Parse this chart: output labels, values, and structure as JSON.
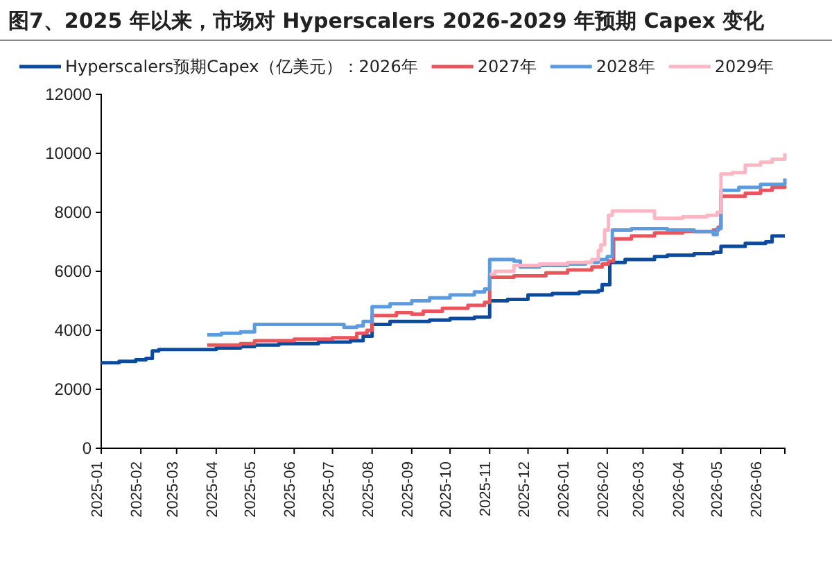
{
  "chart_data": {
    "type": "step",
    "title": "图7、2025 年以来，市场对 Hyperscalers 2026-2029 年预期 Capex 变化",
    "xlim": [
      "2025-01-01",
      "2026-06-20"
    ],
    "xticks": [
      "2025-01",
      "2025-02",
      "2025-03",
      "2025-04",
      "2025-05",
      "2025-06",
      "2025-07",
      "2025-08",
      "2025-09",
      "2025-10",
      "2025-11",
      "2025-12",
      "2026-01",
      "2026-02",
      "2026-03",
      "2026-04",
      "2026-05",
      "2026-06"
    ],
    "ylim": [
      0,
      12000
    ],
    "yticks": [
      0,
      2000,
      4000,
      6000,
      8000,
      10000,
      12000
    ],
    "grid": false,
    "legend": "top",
    "series": [
      {
        "name": "Hyperscalers预期Capex（亿美元）：2026年",
        "color": "#0b4a9c",
        "x": [
          "2025-01-01",
          "2025-01-15",
          "2025-01-28",
          "2025-02-05",
          "2025-02-10",
          "2025-02-15",
          "2025-04-01",
          "2025-04-20",
          "2025-05-01",
          "2025-05-20",
          "2025-06-20",
          "2025-07-15",
          "2025-07-25",
          "2025-08-01",
          "2025-08-15",
          "2025-09-15",
          "2025-10-01",
          "2025-10-20",
          "2025-11-01",
          "2025-11-15",
          "2025-12-01",
          "2025-12-20",
          "2026-01-10",
          "2026-01-25",
          "2026-01-28",
          "2026-02-03",
          "2026-02-15",
          "2026-03-10",
          "2026-03-20",
          "2026-04-10",
          "2026-04-25",
          "2026-05-01",
          "2026-05-20",
          "2026-06-05",
          "2026-06-10",
          "2026-06-20"
        ],
        "values": [
          2900,
          2950,
          3000,
          3050,
          3300,
          3350,
          3400,
          3450,
          3500,
          3550,
          3600,
          3650,
          3800,
          4200,
          4300,
          4350,
          4400,
          4450,
          5000,
          5050,
          5200,
          5250,
          5300,
          5350,
          5550,
          6300,
          6400,
          6500,
          6550,
          6600,
          6650,
          6850,
          6950,
          7000,
          7200,
          7200
        ]
      },
      {
        "name": "2027年",
        "color": "#e8555a",
        "x": [
          "2025-03-25",
          "2025-04-20",
          "2025-05-01",
          "2025-06-01",
          "2025-07-01",
          "2025-07-20",
          "2025-07-28",
          "2025-08-01",
          "2025-08-20",
          "2025-09-01",
          "2025-09-10",
          "2025-09-25",
          "2025-10-15",
          "2025-10-28",
          "2025-11-01",
          "2025-11-20",
          "2025-12-15",
          "2026-01-01",
          "2026-01-20",
          "2026-01-28",
          "2026-02-02",
          "2026-02-06",
          "2026-02-20",
          "2026-03-10",
          "2026-04-01",
          "2026-04-25",
          "2026-04-29",
          "2026-05-01",
          "2026-05-20",
          "2026-06-01",
          "2026-06-10",
          "2026-06-20"
        ],
        "values": [
          3500,
          3550,
          3650,
          3700,
          3750,
          3900,
          4000,
          4500,
          4600,
          4550,
          4650,
          4750,
          4850,
          4950,
          5800,
          5850,
          5950,
          6050,
          6150,
          6250,
          6350,
          7100,
          7200,
          7300,
          7350,
          7400,
          7500,
          8550,
          8650,
          8750,
          8850,
          8900
        ]
      },
      {
        "name": "2028年",
        "color": "#5b9be0",
        "x": [
          "2025-03-25",
          "2025-04-05",
          "2025-04-20",
          "2025-05-01",
          "2025-07-01",
          "2025-07-10",
          "2025-07-20",
          "2025-07-25",
          "2025-08-01",
          "2025-08-15",
          "2025-09-01",
          "2025-09-15",
          "2025-10-01",
          "2025-10-20",
          "2025-10-28",
          "2025-11-01",
          "2025-11-20",
          "2025-11-25",
          "2025-12-10",
          "2026-01-01",
          "2026-01-15",
          "2026-01-25",
          "2026-02-01",
          "2026-02-05",
          "2026-02-20",
          "2026-03-20",
          "2026-04-10",
          "2026-04-25",
          "2026-04-28",
          "2026-05-01",
          "2026-05-15",
          "2026-06-01",
          "2026-06-20"
        ],
        "values": [
          3850,
          3900,
          3950,
          4200,
          4200,
          4100,
          4150,
          4300,
          4800,
          4900,
          5000,
          5100,
          5200,
          5300,
          5400,
          6400,
          6350,
          6150,
          6200,
          6250,
          6300,
          6400,
          6500,
          7400,
          7450,
          7400,
          7350,
          7250,
          7450,
          8750,
          8850,
          8950,
          9150
        ]
      },
      {
        "name": "2029年",
        "color": "#fbb6c4",
        "x": [
          "2025-11-01",
          "2025-11-05",
          "2025-11-20",
          "2025-12-10",
          "2026-01-01",
          "2026-01-20",
          "2026-01-25",
          "2026-01-27",
          "2026-01-30",
          "2026-02-02",
          "2026-02-05",
          "2026-03-01",
          "2026-03-10",
          "2026-04-01",
          "2026-04-20",
          "2026-04-28",
          "2026-05-01",
          "2026-05-10",
          "2026-05-20",
          "2026-06-01",
          "2026-06-10",
          "2026-06-20"
        ],
        "values": [
          5900,
          6000,
          6200,
          6250,
          6300,
          6400,
          6700,
          6900,
          7400,
          7900,
          8050,
          8050,
          7800,
          7850,
          7900,
          8000,
          9300,
          9350,
          9600,
          9700,
          9800,
          10000
        ]
      }
    ]
  }
}
